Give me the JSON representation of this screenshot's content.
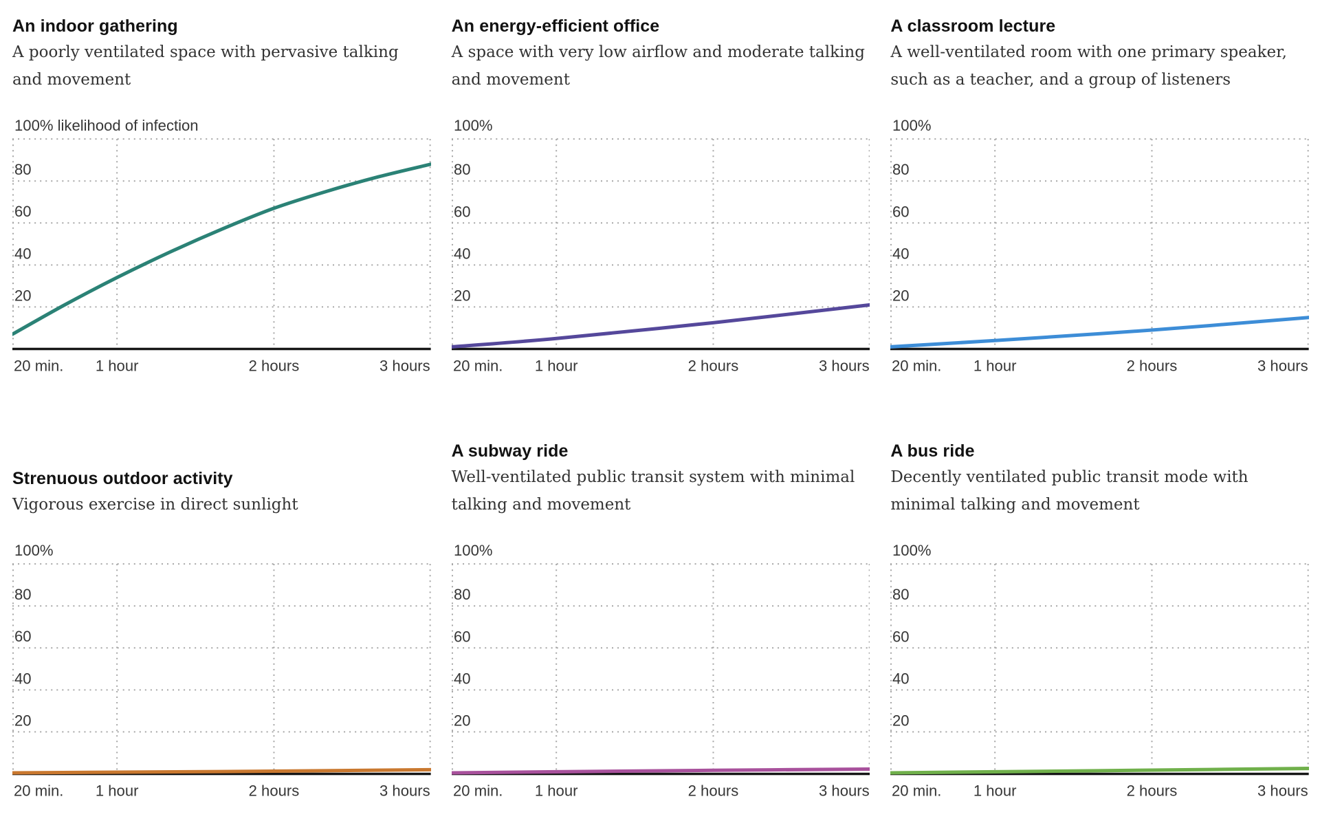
{
  "page": {
    "background": "#ffffff",
    "grid_dot_color": "#a6a6a6",
    "axis_line_color": "#161616",
    "label_text_color": "#363636"
  },
  "axis": {
    "xlim_minutes": [
      20,
      180
    ],
    "ylim_percent": [
      0,
      100
    ],
    "grid": "dotted",
    "y_grid_percent": [
      100,
      80,
      60,
      40,
      20
    ],
    "y_tick_labels": [
      {
        "percent": 80,
        "label": "80"
      },
      {
        "percent": 60,
        "label": "60"
      },
      {
        "percent": 40,
        "label": "40"
      },
      {
        "percent": 20,
        "label": "20"
      }
    ],
    "x_ticks": [
      {
        "minutes": 20,
        "label": "20 min.",
        "align": "start"
      },
      {
        "minutes": 60,
        "label": "1 hour",
        "align": "middle"
      },
      {
        "minutes": 120,
        "label": "2 hours",
        "align": "middle"
      },
      {
        "minutes": 180,
        "label": "3 hours",
        "align": "end"
      }
    ]
  },
  "chart_data": [
    {
      "id": "indoor-gathering",
      "type": "line",
      "title": "An indoor gathering",
      "description": "A poorly ventilated space with pervasive talking\nand movement",
      "y_axis_top_label": "100% likelihood of infection",
      "color": "#2b8276",
      "x_minutes": [
        20,
        40,
        60,
        80,
        100,
        120,
        140,
        160,
        180
      ],
      "y_percent": [
        7,
        21,
        34,
        46,
        57,
        67,
        75,
        82,
        88
      ]
    },
    {
      "id": "energy-efficient-office",
      "type": "line",
      "title": "An energy-efficient office",
      "description": "A space with very low airflow and moderate talking\nand movement",
      "y_axis_top_label": "100%",
      "color": "#55489b",
      "x_minutes": [
        20,
        60,
        120,
        180
      ],
      "y_percent": [
        1,
        5,
        12.5,
        21
      ]
    },
    {
      "id": "classroom-lecture",
      "type": "line",
      "title": "A classroom lecture",
      "description": "A well-ventilated room with one primary speaker,\nsuch as a teacher, and a group of listeners",
      "y_axis_top_label": "100%",
      "color": "#3d8dd7",
      "x_minutes": [
        20,
        60,
        120,
        180
      ],
      "y_percent": [
        1,
        4,
        9,
        15
      ]
    },
    {
      "id": "strenuous-outdoor-activity",
      "type": "line",
      "title": "Strenuous outdoor activity",
      "description": "Vigorous exercise in direct sunlight",
      "y_axis_top_label": "100%",
      "color": "#c9782f",
      "x_minutes": [
        20,
        60,
        120,
        180
      ],
      "y_percent": [
        0.5,
        0.8,
        1.3,
        2
      ]
    },
    {
      "id": "subway-ride",
      "type": "line",
      "title": "A subway ride",
      "description": "Well-ventilated public transit system with minimal\ntalking and movement",
      "y_axis_top_label": "100%",
      "color": "#a8519c",
      "x_minutes": [
        20,
        60,
        120,
        180
      ],
      "y_percent": [
        0.5,
        1,
        1.7,
        2.3
      ]
    },
    {
      "id": "bus-ride",
      "type": "line",
      "title": "A bus ride",
      "description": "Decently ventilated public transit mode with\nminimal talking and movement",
      "y_axis_top_label": "100%",
      "color": "#70b04b",
      "x_minutes": [
        20,
        60,
        120,
        180
      ],
      "y_percent": [
        0.5,
        1,
        1.8,
        2.6
      ]
    }
  ]
}
